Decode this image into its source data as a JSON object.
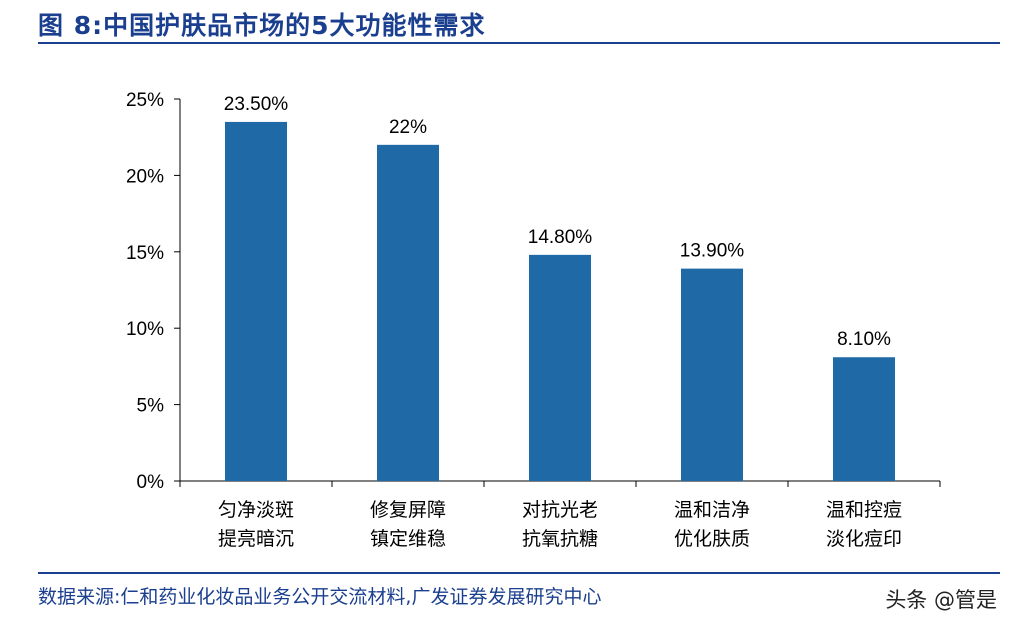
{
  "figure": {
    "title": "图 8:中国护肤品市场的5大功能性需求",
    "source": "数据来源:仁和药业化妆品业务公开交流材料,广发证券发展研究中心",
    "watermark": "头条 @管是"
  },
  "colors": {
    "bar": "#1f6aa6",
    "brand": "#1b3f8f"
  },
  "chart_data": {
    "type": "bar",
    "title": "",
    "xlabel": "",
    "ylabel": "",
    "categories": [
      [
        "匀净淡斑",
        "提亮暗沉"
      ],
      [
        "修复屏障",
        "镇定维稳"
      ],
      [
        "对抗光老",
        "抗氧抗糖"
      ],
      [
        "温和洁净",
        "优化肤质"
      ],
      [
        "温和控痘",
        "淡化痘印"
      ]
    ],
    "values": [
      23.5,
      22,
      14.8,
      13.9,
      8.1
    ],
    "data_labels": [
      "23.50%",
      "22%",
      "14.80%",
      "13.90%",
      "8.10%"
    ],
    "ylim": [
      0,
      25
    ],
    "yticks": [
      0,
      5,
      10,
      15,
      20,
      25
    ],
    "ytick_labels": [
      "0%",
      "5%",
      "10%",
      "15%",
      "20%",
      "25%"
    ],
    "grid": false,
    "legend": "none"
  }
}
